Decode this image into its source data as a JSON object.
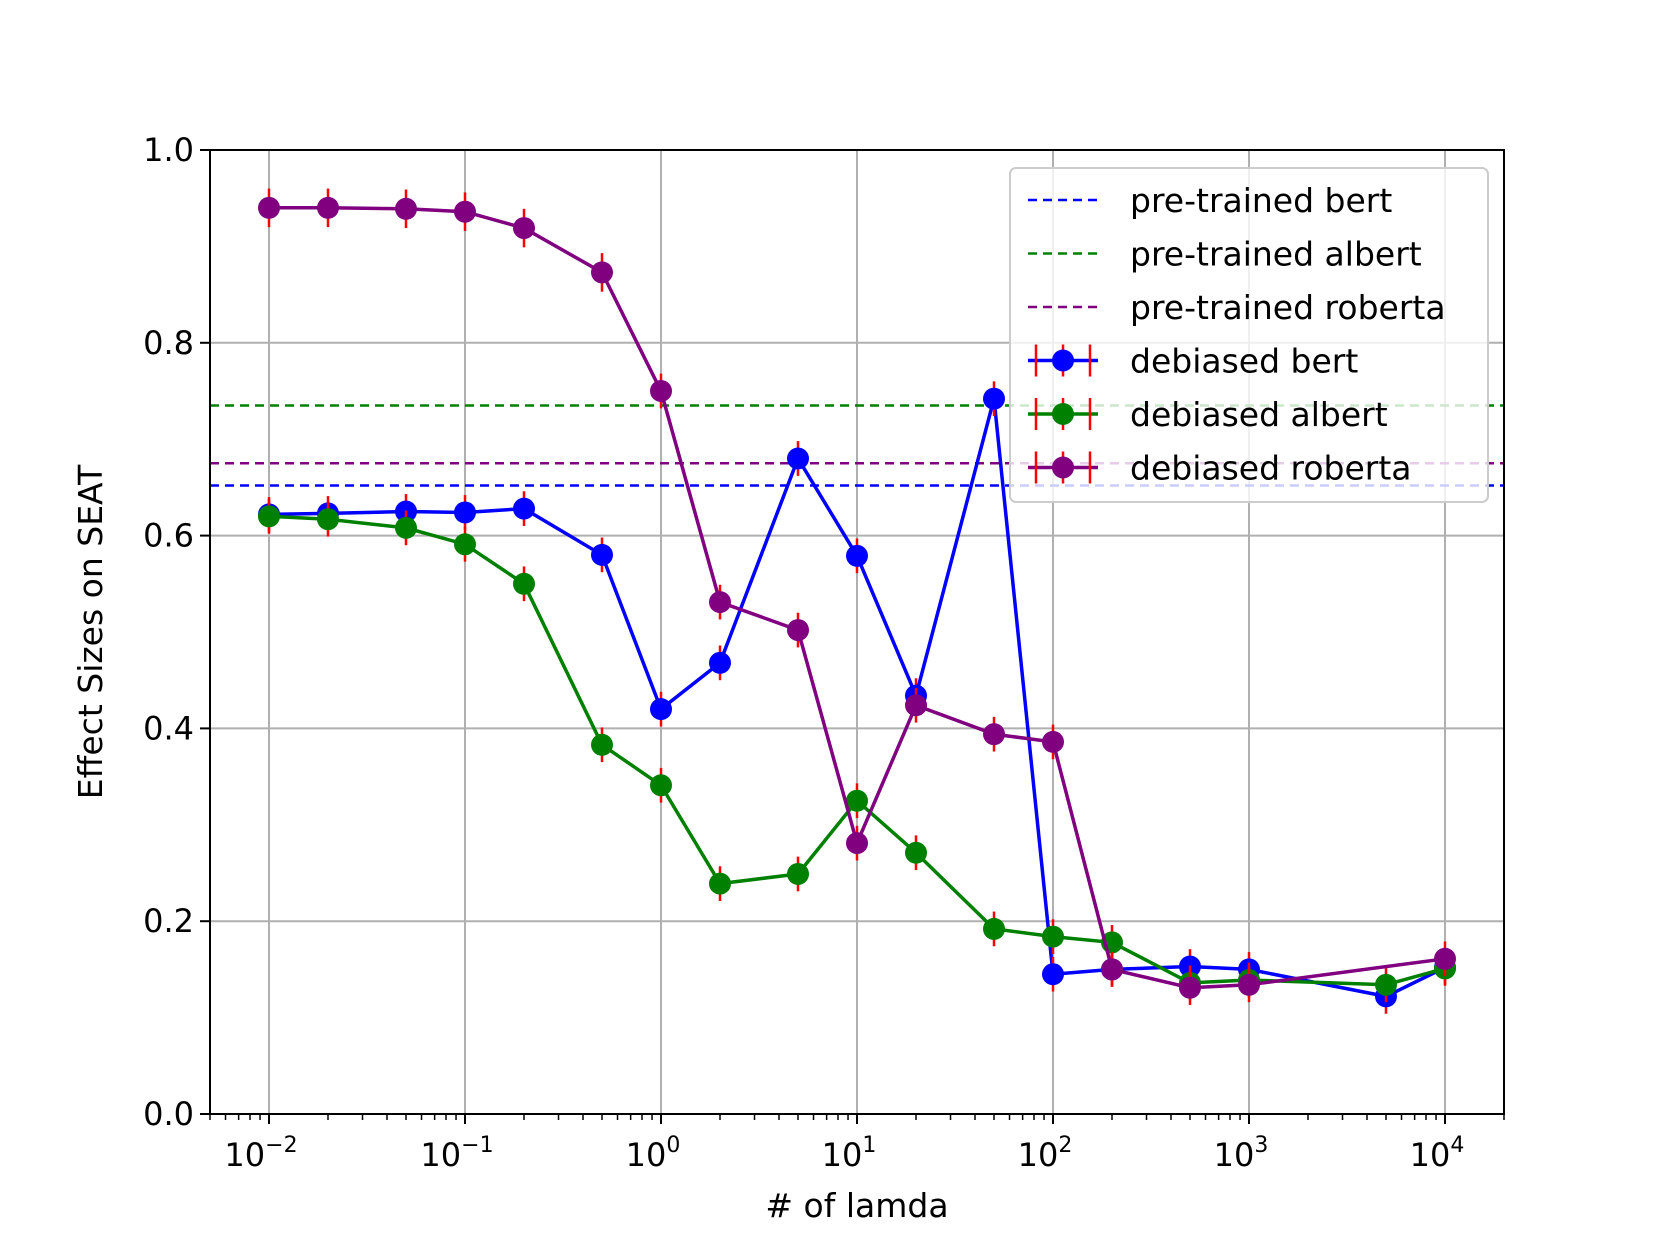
{
  "chart_data": {
    "type": "line",
    "title": "",
    "xlabel": "# of lamda",
    "ylabel": "Effect Sizes on SEAT",
    "xscale": "log",
    "xlim": [
      0.005,
      20000
    ],
    "ylim": [
      0.0,
      1.0
    ],
    "grid": true,
    "legend_position": "top-right",
    "x_ticks": [
      {
        "value": 0.01,
        "base": "10",
        "exp": "−2"
      },
      {
        "value": 0.1,
        "base": "10",
        "exp": "−1"
      },
      {
        "value": 1,
        "base": "10",
        "exp": "0"
      },
      {
        "value": 10,
        "base": "10",
        "exp": "1"
      },
      {
        "value": 100,
        "base": "10",
        "exp": "2"
      },
      {
        "value": 1000,
        "base": "10",
        "exp": "3"
      },
      {
        "value": 10000,
        "base": "10",
        "exp": "4"
      }
    ],
    "y_ticks": [
      "0.0",
      "0.2",
      "0.4",
      "0.6",
      "0.8",
      "1.0"
    ],
    "x": [
      0.01,
      0.02,
      0.05,
      0.1,
      0.2,
      0.5,
      1,
      2,
      5,
      10,
      20,
      50,
      100,
      200,
      500,
      1000,
      5000,
      10000
    ],
    "reference_lines": [
      {
        "name": "pre-trained bert",
        "value": 0.652,
        "color": "#0000ff"
      },
      {
        "name": "pre-trained albert",
        "value": 0.735,
        "color": "#008000"
      },
      {
        "name": "pre-trained roberta",
        "value": 0.675,
        "color": "#800080"
      }
    ],
    "series": [
      {
        "name": "debiased bert",
        "color": "#0000ff",
        "values": [
          0.622,
          0.623,
          0.625,
          0.624,
          0.628,
          0.58,
          0.42,
          0.468,
          0.68,
          0.579,
          0.434,
          0.742,
          0.145,
          0.15,
          0.153,
          0.15,
          0.122,
          0.152
        ],
        "errors": [
          0.018,
          0.018,
          0.018,
          0.018,
          0.018,
          0.018,
          0.018,
          0.018,
          0.018,
          0.018,
          0.018,
          0.018,
          0.018,
          0.018,
          0.018,
          0.018,
          0.018,
          0.018
        ]
      },
      {
        "name": "debiased albert",
        "color": "#008000",
        "values": [
          0.62,
          0.617,
          0.608,
          0.591,
          0.55,
          0.383,
          0.341,
          0.239,
          0.249,
          0.325,
          0.271,
          0.192,
          0.184,
          0.178,
          0.136,
          0.139,
          0.134,
          0.151
        ],
        "errors": [
          0.018,
          0.018,
          0.018,
          0.018,
          0.018,
          0.018,
          0.018,
          0.018,
          0.018,
          0.018,
          0.018,
          0.018,
          0.018,
          0.018,
          0.018,
          0.018,
          0.018,
          0.018
        ]
      },
      {
        "name": "debiased roberta",
        "color": "#800080",
        "values": [
          0.94,
          0.94,
          0.939,
          0.936,
          0.919,
          0.873,
          0.75,
          0.531,
          0.502,
          0.281,
          0.424,
          0.394,
          0.386,
          0.15,
          0.131,
          0.134,
          null,
          0.161
        ],
        "errors": [
          0.02,
          0.02,
          0.02,
          0.02,
          0.02,
          0.02,
          0.018,
          0.018,
          0.018,
          0.018,
          0.018,
          0.018,
          0.018,
          0.018,
          0.018,
          0.018,
          null,
          0.018
        ]
      }
    ],
    "error_bar_color": "#ff0000"
  }
}
